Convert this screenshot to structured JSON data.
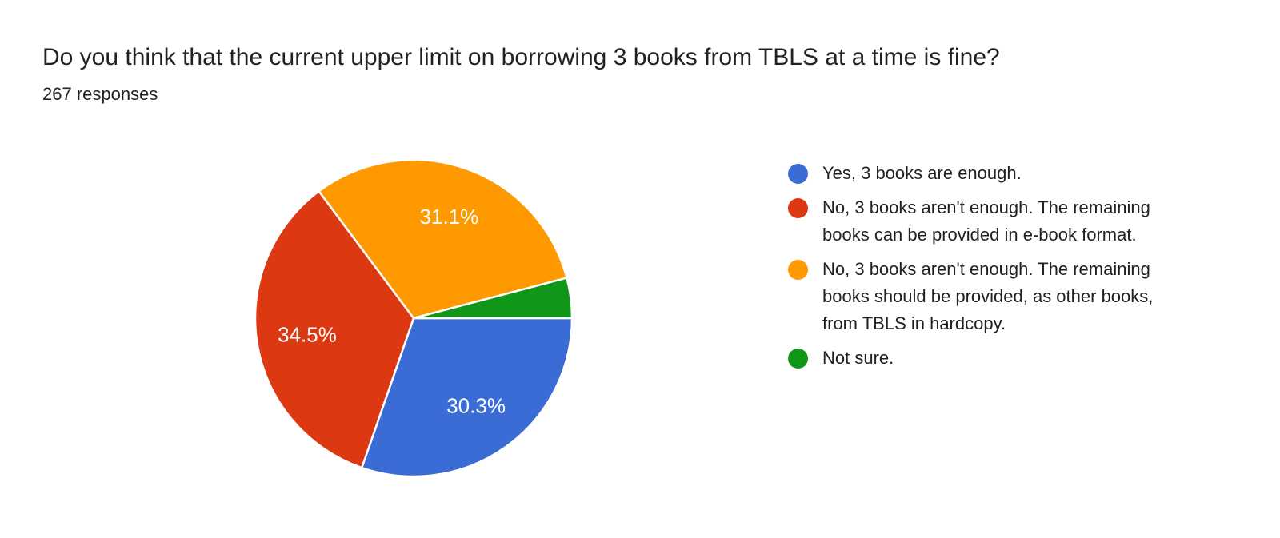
{
  "chart_data": {
    "type": "pie",
    "title": "Do you think that the current upper limit on borrowing 3 books from TBLS at a time is fine?",
    "subtitle": "267 responses",
    "direction": "clockwise",
    "start_angle_deg_from_east": 0,
    "legend_position": "right",
    "percent_label_color": "#ffffff",
    "slices": [
      {
        "label": "Yes, 3 books are enough.",
        "value_percent": 30.3,
        "percent_label": "30.3%",
        "color": "#3B6BD5"
      },
      {
        "label": "No, 3 books aren't enough. The remaining books can be provided in e-book format.",
        "value_percent": 34.5,
        "percent_label": "34.5%",
        "color": "#DC3912"
      },
      {
        "label": "No, 3 books aren't enough. The remaining books should be provided, as other books, from TBLS in hardcopy.",
        "value_percent": 31.1,
        "percent_label": "31.1%",
        "color": "#FF9900"
      },
      {
        "label": "Not sure.",
        "value_percent": 4.1,
        "color": "#109618"
      }
    ]
  }
}
